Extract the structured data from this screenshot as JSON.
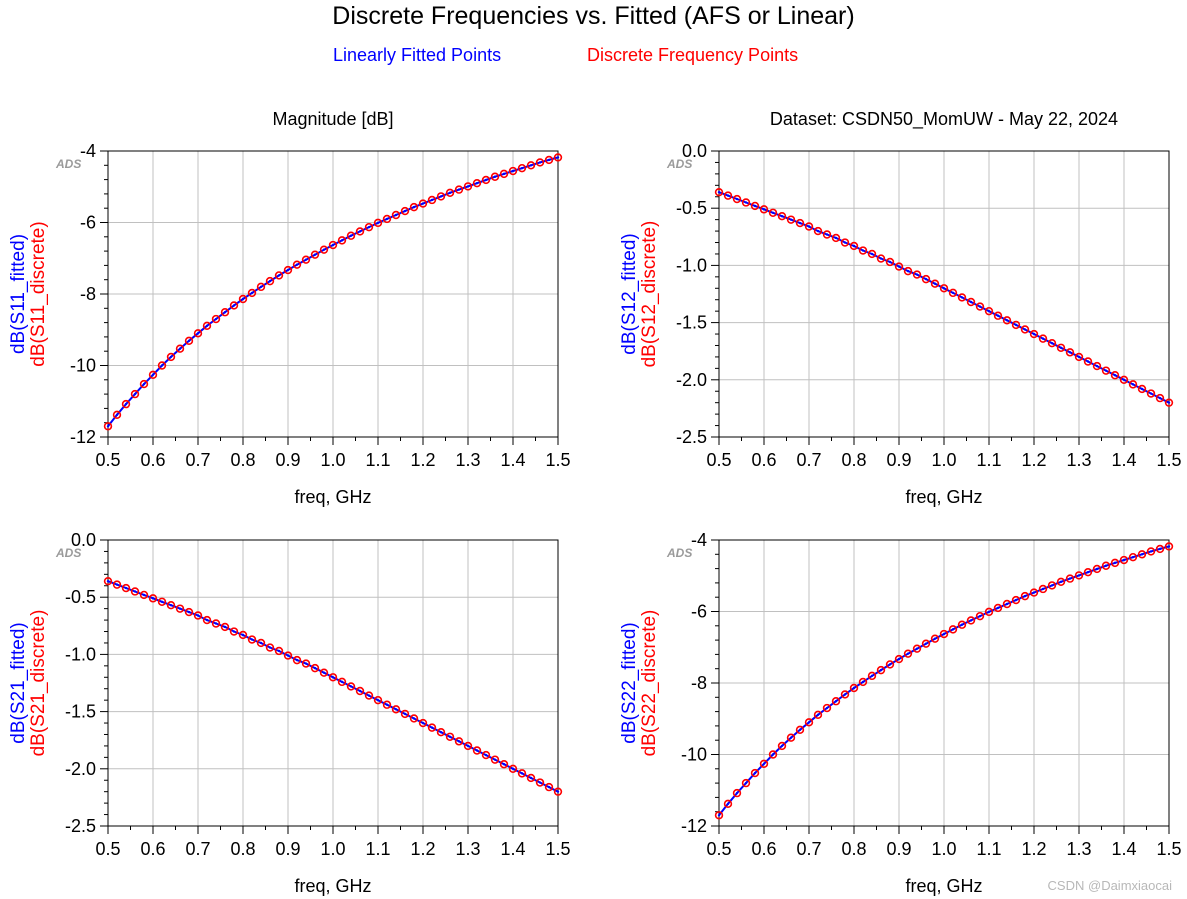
{
  "figure": {
    "title": "Discrete Frequencies vs. Fitted (AFS or Linear)",
    "legend_fitted": "Linearly Fitted Points",
    "legend_discrete": "Discrete Frequency Points",
    "watermark": "CSDN @Daimxiaocai",
    "colors": {
      "fitted": "#0000ff",
      "discrete": "#ff0000",
      "grid": "#c0c0c0",
      "axis": "#000000"
    }
  },
  "chart_data": [
    {
      "type": "line",
      "id": "s11",
      "header": "Magnitude [dB]",
      "badge": "ADS",
      "xlabel": "freq, GHz",
      "ylabel_fitted": "dB(S11_fitted)",
      "ylabel_discrete": "dB(S11_discrete)",
      "xlim": [
        0.5,
        1.5
      ],
      "ylim": [
        -12,
        -4
      ],
      "xticks": [
        "0.5",
        "0.6",
        "0.7",
        "0.8",
        "0.9",
        "1.0",
        "1.1",
        "1.2",
        "1.3",
        "1.4",
        "1.5"
      ],
      "yticks": [
        "-12",
        "-10",
        "-8",
        "-6",
        "-4"
      ],
      "series": [
        {
          "name": "dB(S11_fitted)",
          "style": "line"
        },
        {
          "name": "dB(S11_discrete)",
          "style": "marker"
        }
      ],
      "x": [
        0.5,
        0.52,
        0.54,
        0.56,
        0.58,
        0.6,
        0.62,
        0.64,
        0.66,
        0.68,
        0.7,
        0.72,
        0.74,
        0.76,
        0.78,
        0.8,
        0.82,
        0.84,
        0.86,
        0.88,
        0.9,
        0.92,
        0.94,
        0.96,
        0.98,
        1.0,
        1.02,
        1.04,
        1.06,
        1.08,
        1.1,
        1.12,
        1.14,
        1.16,
        1.18,
        1.2,
        1.22,
        1.24,
        1.26,
        1.28,
        1.3,
        1.32,
        1.34,
        1.36,
        1.38,
        1.4,
        1.42,
        1.44,
        1.46,
        1.48,
        1.5
      ],
      "values": [
        -11.7,
        -11.38,
        -11.08,
        -10.8,
        -10.52,
        -10.26,
        -10.0,
        -9.76,
        -9.53,
        -9.31,
        -9.1,
        -8.89,
        -8.7,
        -8.51,
        -8.32,
        -8.14,
        -7.97,
        -7.8,
        -7.64,
        -7.48,
        -7.33,
        -7.18,
        -7.04,
        -6.9,
        -6.76,
        -6.63,
        -6.5,
        -6.37,
        -6.25,
        -6.13,
        -6.01,
        -5.9,
        -5.79,
        -5.68,
        -5.57,
        -5.47,
        -5.37,
        -5.27,
        -5.17,
        -5.08,
        -4.99,
        -4.9,
        -4.81,
        -4.72,
        -4.64,
        -4.56,
        -4.48,
        -4.4,
        -4.32,
        -4.25,
        -4.18
      ]
    },
    {
      "type": "line",
      "id": "s12",
      "header": "Dataset: CSDN50_MomUW - May 22, 2024",
      "badge": "ADS",
      "xlabel": "freq, GHz",
      "ylabel_fitted": "dB(S12_fitted)",
      "ylabel_discrete": "dB(S12_discrete)",
      "xlim": [
        0.5,
        1.5
      ],
      "ylim": [
        -2.5,
        0.0
      ],
      "xticks": [
        "0.5",
        "0.6",
        "0.7",
        "0.8",
        "0.9",
        "1.0",
        "1.1",
        "1.2",
        "1.3",
        "1.4",
        "1.5"
      ],
      "yticks": [
        "-2.5",
        "-2.0",
        "-1.5",
        "-1.0",
        "-0.5",
        "0.0"
      ],
      "series": [
        {
          "name": "dB(S12_fitted)",
          "style": "line"
        },
        {
          "name": "dB(S12_discrete)",
          "style": "marker"
        }
      ],
      "x": [
        0.5,
        0.52,
        0.54,
        0.56,
        0.58,
        0.6,
        0.62,
        0.64,
        0.66,
        0.68,
        0.7,
        0.72,
        0.74,
        0.76,
        0.78,
        0.8,
        0.82,
        0.84,
        0.86,
        0.88,
        0.9,
        0.92,
        0.94,
        0.96,
        0.98,
        1.0,
        1.02,
        1.04,
        1.06,
        1.08,
        1.1,
        1.12,
        1.14,
        1.16,
        1.18,
        1.2,
        1.22,
        1.24,
        1.26,
        1.28,
        1.3,
        1.32,
        1.34,
        1.36,
        1.38,
        1.4,
        1.42,
        1.44,
        1.46,
        1.48,
        1.5
      ],
      "values": [
        -0.36,
        -0.39,
        -0.42,
        -0.45,
        -0.48,
        -0.51,
        -0.54,
        -0.57,
        -0.6,
        -0.63,
        -0.66,
        -0.7,
        -0.73,
        -0.76,
        -0.8,
        -0.83,
        -0.87,
        -0.9,
        -0.94,
        -0.97,
        -1.01,
        -1.05,
        -1.08,
        -1.12,
        -1.16,
        -1.2,
        -1.24,
        -1.28,
        -1.32,
        -1.36,
        -1.4,
        -1.44,
        -1.48,
        -1.52,
        -1.56,
        -1.6,
        -1.64,
        -1.68,
        -1.72,
        -1.76,
        -1.8,
        -1.84,
        -1.88,
        -1.92,
        -1.96,
        -2.0,
        -2.04,
        -2.08,
        -2.12,
        -2.16,
        -2.2
      ]
    },
    {
      "type": "line",
      "id": "s21",
      "header": "",
      "badge": "ADS",
      "xlabel": "freq, GHz",
      "ylabel_fitted": "dB(S21_fitted)",
      "ylabel_discrete": "dB(S21_discrete)",
      "xlim": [
        0.5,
        1.5
      ],
      "ylim": [
        -2.5,
        0.0
      ],
      "xticks": [
        "0.5",
        "0.6",
        "0.7",
        "0.8",
        "0.9",
        "1.0",
        "1.1",
        "1.2",
        "1.3",
        "1.4",
        "1.5"
      ],
      "yticks": [
        "-2.5",
        "-2.0",
        "-1.5",
        "-1.0",
        "-0.5",
        "0.0"
      ],
      "series": [
        {
          "name": "dB(S21_fitted)",
          "style": "line"
        },
        {
          "name": "dB(S21_discrete)",
          "style": "marker"
        }
      ],
      "x": [
        0.5,
        0.52,
        0.54,
        0.56,
        0.58,
        0.6,
        0.62,
        0.64,
        0.66,
        0.68,
        0.7,
        0.72,
        0.74,
        0.76,
        0.78,
        0.8,
        0.82,
        0.84,
        0.86,
        0.88,
        0.9,
        0.92,
        0.94,
        0.96,
        0.98,
        1.0,
        1.02,
        1.04,
        1.06,
        1.08,
        1.1,
        1.12,
        1.14,
        1.16,
        1.18,
        1.2,
        1.22,
        1.24,
        1.26,
        1.28,
        1.3,
        1.32,
        1.34,
        1.36,
        1.38,
        1.4,
        1.42,
        1.44,
        1.46,
        1.48,
        1.5
      ],
      "values": [
        -0.36,
        -0.39,
        -0.42,
        -0.45,
        -0.48,
        -0.51,
        -0.54,
        -0.57,
        -0.6,
        -0.63,
        -0.66,
        -0.7,
        -0.73,
        -0.76,
        -0.8,
        -0.83,
        -0.87,
        -0.9,
        -0.94,
        -0.97,
        -1.01,
        -1.05,
        -1.08,
        -1.12,
        -1.16,
        -1.2,
        -1.24,
        -1.28,
        -1.32,
        -1.36,
        -1.4,
        -1.44,
        -1.48,
        -1.52,
        -1.56,
        -1.6,
        -1.64,
        -1.68,
        -1.72,
        -1.76,
        -1.8,
        -1.84,
        -1.88,
        -1.92,
        -1.96,
        -2.0,
        -2.04,
        -2.08,
        -2.12,
        -2.16,
        -2.2
      ]
    },
    {
      "type": "line",
      "id": "s22",
      "header": "",
      "badge": "ADS",
      "xlabel": "freq, GHz",
      "ylabel_fitted": "dB(S22_fitted)",
      "ylabel_discrete": "dB(S22_discrete)",
      "xlim": [
        0.5,
        1.5
      ],
      "ylim": [
        -12,
        -4
      ],
      "xticks": [
        "0.5",
        "0.6",
        "0.7",
        "0.8",
        "0.9",
        "1.0",
        "1.1",
        "1.2",
        "1.3",
        "1.4",
        "1.5"
      ],
      "yticks": [
        "-12",
        "-10",
        "-8",
        "-6",
        "-4"
      ],
      "series": [
        {
          "name": "dB(S22_fitted)",
          "style": "line"
        },
        {
          "name": "dB(S22_discrete)",
          "style": "marker"
        }
      ],
      "x": [
        0.5,
        0.52,
        0.54,
        0.56,
        0.58,
        0.6,
        0.62,
        0.64,
        0.66,
        0.68,
        0.7,
        0.72,
        0.74,
        0.76,
        0.78,
        0.8,
        0.82,
        0.84,
        0.86,
        0.88,
        0.9,
        0.92,
        0.94,
        0.96,
        0.98,
        1.0,
        1.02,
        1.04,
        1.06,
        1.08,
        1.1,
        1.12,
        1.14,
        1.16,
        1.18,
        1.2,
        1.22,
        1.24,
        1.26,
        1.28,
        1.3,
        1.32,
        1.34,
        1.36,
        1.38,
        1.4,
        1.42,
        1.44,
        1.46,
        1.48,
        1.5
      ],
      "values": [
        -11.7,
        -11.38,
        -11.08,
        -10.8,
        -10.52,
        -10.26,
        -10.0,
        -9.76,
        -9.53,
        -9.31,
        -9.1,
        -8.89,
        -8.7,
        -8.51,
        -8.32,
        -8.14,
        -7.97,
        -7.8,
        -7.64,
        -7.48,
        -7.33,
        -7.18,
        -7.04,
        -6.9,
        -6.76,
        -6.63,
        -6.5,
        -6.37,
        -6.25,
        -6.13,
        -6.01,
        -5.9,
        -5.79,
        -5.68,
        -5.57,
        -5.47,
        -5.37,
        -5.27,
        -5.17,
        -5.08,
        -4.99,
        -4.9,
        -4.81,
        -4.72,
        -4.64,
        -4.56,
        -4.48,
        -4.4,
        -4.32,
        -4.25,
        -4.18
      ]
    }
  ]
}
